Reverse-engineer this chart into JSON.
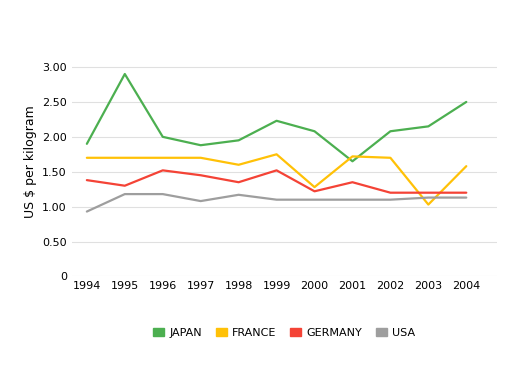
{
  "years": [
    1994,
    1995,
    1996,
    1997,
    1998,
    1999,
    2000,
    2001,
    2002,
    2003,
    2004
  ],
  "japan": [
    1.9,
    2.9,
    2.0,
    1.88,
    1.95,
    2.23,
    2.08,
    1.65,
    2.08,
    2.15,
    2.5
  ],
  "france": [
    1.7,
    1.7,
    1.7,
    1.7,
    1.6,
    1.75,
    1.28,
    1.72,
    1.7,
    1.03,
    1.58
  ],
  "germany": [
    1.38,
    1.3,
    1.52,
    1.45,
    1.35,
    1.52,
    1.22,
    1.35,
    1.2,
    1.2,
    1.2
  ],
  "usa": [
    0.93,
    1.18,
    1.18,
    1.08,
    1.17,
    1.1,
    1.1,
    1.1,
    1.1,
    1.13,
    1.13
  ],
  "colors": {
    "japan": "#4caf50",
    "france": "#ffc107",
    "germany": "#f44336",
    "usa": "#9e9e9e"
  },
  "labels": {
    "japan": "JAPAN",
    "france": "FRANCE",
    "germany": "GERMANY",
    "usa": "USA"
  },
  "ylabel": "US $ per kilogram",
  "ylim": [
    0,
    3.3
  ],
  "yticks": [
    0,
    0.5,
    1.0,
    1.5,
    2.0,
    2.5,
    3.0
  ],
  "background_color": "#ffffff",
  "grid_color": "#e0e0e0",
  "line_width": 1.6,
  "tick_fontsize": 8,
  "ylabel_fontsize": 9
}
